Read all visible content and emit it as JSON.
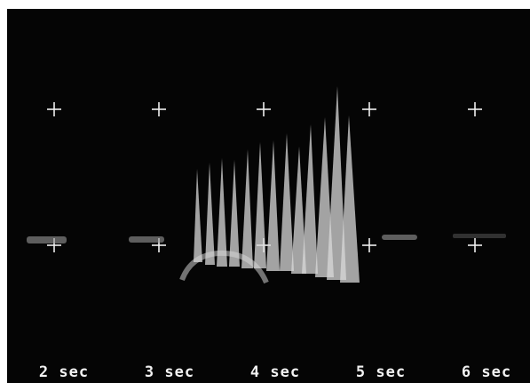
{
  "time_labels": [
    "2 sec",
    "3 sec",
    "4 sec",
    "5 sec",
    "6 sec"
  ]
}
